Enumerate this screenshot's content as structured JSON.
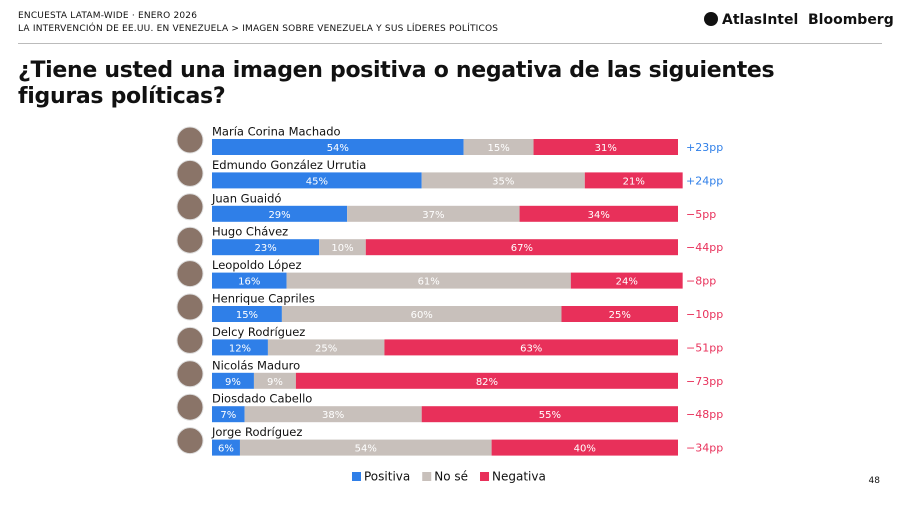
{
  "header": {
    "kicker": "ENCUESTA LATAM-WIDE · ENERO 2026",
    "breadcrumb": "LA INTERVENCIÓN DE EE.UU. EN VENEZUELA > IMAGEN SOBRE VENEZUELA Y SUS LÍDERES POLÍTICOS",
    "brand_1": "AtlasIntel",
    "brand_2": "Bloomberg"
  },
  "page_number": "48",
  "chart_data": {
    "type": "stacked-bar-horizontal",
    "title": "¿Tiene usted una imagen positiva o negativa de las siguientes figuras políticas?",
    "categories": [
      "María Corina Machado",
      "Edmundo González Urrutia",
      "Juan Guaidó",
      "Hugo Chávez",
      "Leopoldo López",
      "Henrique Capriles",
      "Delcy Rodríguez",
      "Nicolás Maduro",
      "Diosdado Cabello",
      "Jorge Rodríguez"
    ],
    "xlim": [
      0,
      100
    ],
    "series": [
      {
        "name": "Positiva",
        "color": "#2f7fe8",
        "values": [
          54,
          45,
          29,
          23,
          16,
          15,
          12,
          9,
          7,
          6
        ],
        "value_labels": [
          "54%",
          "45%",
          "29%",
          "23%",
          "16%",
          "15%",
          "12%",
          "9%",
          "7%",
          "6%"
        ]
      },
      {
        "name": "No sé",
        "color": "#c8c0bb",
        "values": [
          15,
          35,
          37,
          10,
          61,
          60,
          25,
          9,
          38,
          54
        ],
        "value_labels": [
          "15%",
          "35%",
          "37%",
          "10%",
          "61%",
          "60%",
          "25%",
          "9%",
          "38%",
          "54%"
        ]
      },
      {
        "name": "Negativa",
        "color": "#e8305a",
        "values": [
          31,
          21,
          34,
          67,
          24,
          25,
          63,
          82,
          55,
          40
        ],
        "value_labels": [
          "31%",
          "21%",
          "34%",
          "67%",
          "24%",
          "25%",
          "63%",
          "82%",
          "55%",
          "40%"
        ]
      }
    ],
    "net_labels": [
      "+23pp",
      "+24pp",
      "−5pp",
      "−44pp",
      "−8pp",
      "−10pp",
      "−51pp",
      "−73pp",
      "−48pp",
      "−34pp"
    ],
    "legend": "bottom"
  }
}
